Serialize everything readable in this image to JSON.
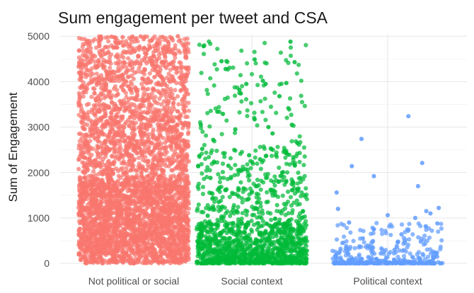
{
  "chart_data": {
    "type": "scatter",
    "title": "Sum engagement per tweet and CSA",
    "xlabel": "",
    "ylabel": "Sum of Engagement",
    "categories": [
      "Not political or social",
      "Social context",
      "Political context"
    ],
    "ylim": [
      -60,
      5050
    ],
    "yticks": [
      0,
      1000,
      2000,
      3000,
      4000,
      5000
    ],
    "grid": true,
    "legend": "none",
    "jitter_width": 0.4,
    "series": [
      {
        "category": "Not political or social",
        "color": "#F8766D",
        "approx_point_count": 4000,
        "value_range": [
          0,
          5000
        ],
        "points": [
          {
            "x": 0.84,
            "y": 4990
          },
          {
            "x": 0.92,
            "y": 4980
          },
          {
            "x": 1.05,
            "y": 4995
          },
          {
            "x": 1.21,
            "y": 4985
          },
          {
            "x": 1.32,
            "y": 5000
          },
          {
            "x": 0.75,
            "y": 4850
          },
          {
            "x": 1.1,
            "y": 4700
          },
          {
            "x": 0.88,
            "y": 4550
          },
          {
            "x": 1.27,
            "y": 4400
          },
          {
            "x": 0.96,
            "y": 4250
          },
          {
            "x": 1.15,
            "y": 4100
          },
          {
            "x": 0.8,
            "y": 3950
          },
          {
            "x": 1.34,
            "y": 3800
          },
          {
            "x": 1.02,
            "y": 3600
          },
          {
            "x": 0.9,
            "y": 3400
          },
          {
            "x": 1.24,
            "y": 3250
          },
          {
            "x": 0.78,
            "y": 3050
          },
          {
            "x": 1.08,
            "y": 2850
          },
          {
            "x": 1.3,
            "y": 2650
          },
          {
            "x": 0.86,
            "y": 2450
          },
          {
            "x": 1.18,
            "y": 2250
          },
          {
            "x": 0.98,
            "y": 2050
          },
          {
            "x": 0.72,
            "y": 1850
          },
          {
            "x": 1.36,
            "y": 1600
          },
          {
            "x": 1.04,
            "y": 1350
          },
          {
            "x": 0.82,
            "y": 1100
          },
          {
            "x": 1.22,
            "y": 850
          },
          {
            "x": 0.94,
            "y": 600
          },
          {
            "x": 1.12,
            "y": 350
          },
          {
            "x": 0.76,
            "y": 150
          },
          {
            "x": 1.29,
            "y": 40
          },
          {
            "x": 1.0,
            "y": 0
          }
        ]
      },
      {
        "category": "Social context",
        "color": "#00BA38",
        "approx_point_count": 1400,
        "value_range": [
          0,
          4900
        ],
        "points": [
          {
            "x": 1.65,
            "y": 4780
          },
          {
            "x": 2.28,
            "y": 4880
          },
          {
            "x": 1.78,
            "y": 4450
          },
          {
            "x": 2.31,
            "y": 4430
          },
          {
            "x": 1.81,
            "y": 4280
          },
          {
            "x": 2.02,
            "y": 4490
          },
          {
            "x": 1.96,
            "y": 3950
          },
          {
            "x": 2.08,
            "y": 4020
          },
          {
            "x": 2.1,
            "y": 3950
          },
          {
            "x": 2.25,
            "y": 3970
          },
          {
            "x": 1.91,
            "y": 3820
          },
          {
            "x": 2.2,
            "y": 3680
          },
          {
            "x": 1.92,
            "y": 3740
          },
          {
            "x": 1.75,
            "y": 3340
          },
          {
            "x": 1.79,
            "y": 3290
          },
          {
            "x": 1.63,
            "y": 3050
          },
          {
            "x": 2.02,
            "y": 3170
          },
          {
            "x": 2.12,
            "y": 3000
          },
          {
            "x": 2.29,
            "y": 3050
          },
          {
            "x": 1.88,
            "y": 2950
          },
          {
            "x": 2.15,
            "y": 2860
          },
          {
            "x": 1.72,
            "y": 2720
          },
          {
            "x": 2.33,
            "y": 2650
          },
          {
            "x": 1.64,
            "y": 2520
          },
          {
            "x": 1.98,
            "y": 2380
          },
          {
            "x": 2.06,
            "y": 2290
          },
          {
            "x": 1.83,
            "y": 2150
          },
          {
            "x": 2.22,
            "y": 2000
          },
          {
            "x": 1.7,
            "y": 1880
          },
          {
            "x": 2.3,
            "y": 1780
          },
          {
            "x": 1.94,
            "y": 1650
          },
          {
            "x": 2.17,
            "y": 1500
          },
          {
            "x": 1.76,
            "y": 1350
          },
          {
            "x": 2.04,
            "y": 1200
          },
          {
            "x": 1.68,
            "y": 1050
          },
          {
            "x": 2.27,
            "y": 950
          }
        ]
      },
      {
        "category": "Political context",
        "color": "#619CFF",
        "approx_point_count": 350,
        "value_range": [
          0,
          3240
        ],
        "points": [
          {
            "x": 3.15,
            "y": 3240
          },
          {
            "x": 2.81,
            "y": 2740
          },
          {
            "x": 3.25,
            "y": 2210
          },
          {
            "x": 2.74,
            "y": 2140
          },
          {
            "x": 2.9,
            "y": 1920
          },
          {
            "x": 3.22,
            "y": 1700
          },
          {
            "x": 2.63,
            "y": 1560
          },
          {
            "x": 3.37,
            "y": 1220
          },
          {
            "x": 3.31,
            "y": 1100
          },
          {
            "x": 3.28,
            "y": 1150
          },
          {
            "x": 2.64,
            "y": 1200
          },
          {
            "x": 3.0,
            "y": 1060
          },
          {
            "x": 3.2,
            "y": 1000
          },
          {
            "x": 2.72,
            "y": 900
          },
          {
            "x": 3.36,
            "y": 880
          },
          {
            "x": 2.9,
            "y": 750
          },
          {
            "x": 3.1,
            "y": 640
          },
          {
            "x": 2.82,
            "y": 550
          },
          {
            "x": 3.24,
            "y": 480
          },
          {
            "x": 2.7,
            "y": 380
          },
          {
            "x": 3.05,
            "y": 300
          },
          {
            "x": 2.95,
            "y": 220
          },
          {
            "x": 3.33,
            "y": 150
          },
          {
            "x": 2.66,
            "y": 90
          },
          {
            "x": 3.12,
            "y": 40
          },
          {
            "x": 2.87,
            "y": 10
          },
          {
            "x": 3.18,
            "y": 0
          }
        ]
      }
    ]
  }
}
